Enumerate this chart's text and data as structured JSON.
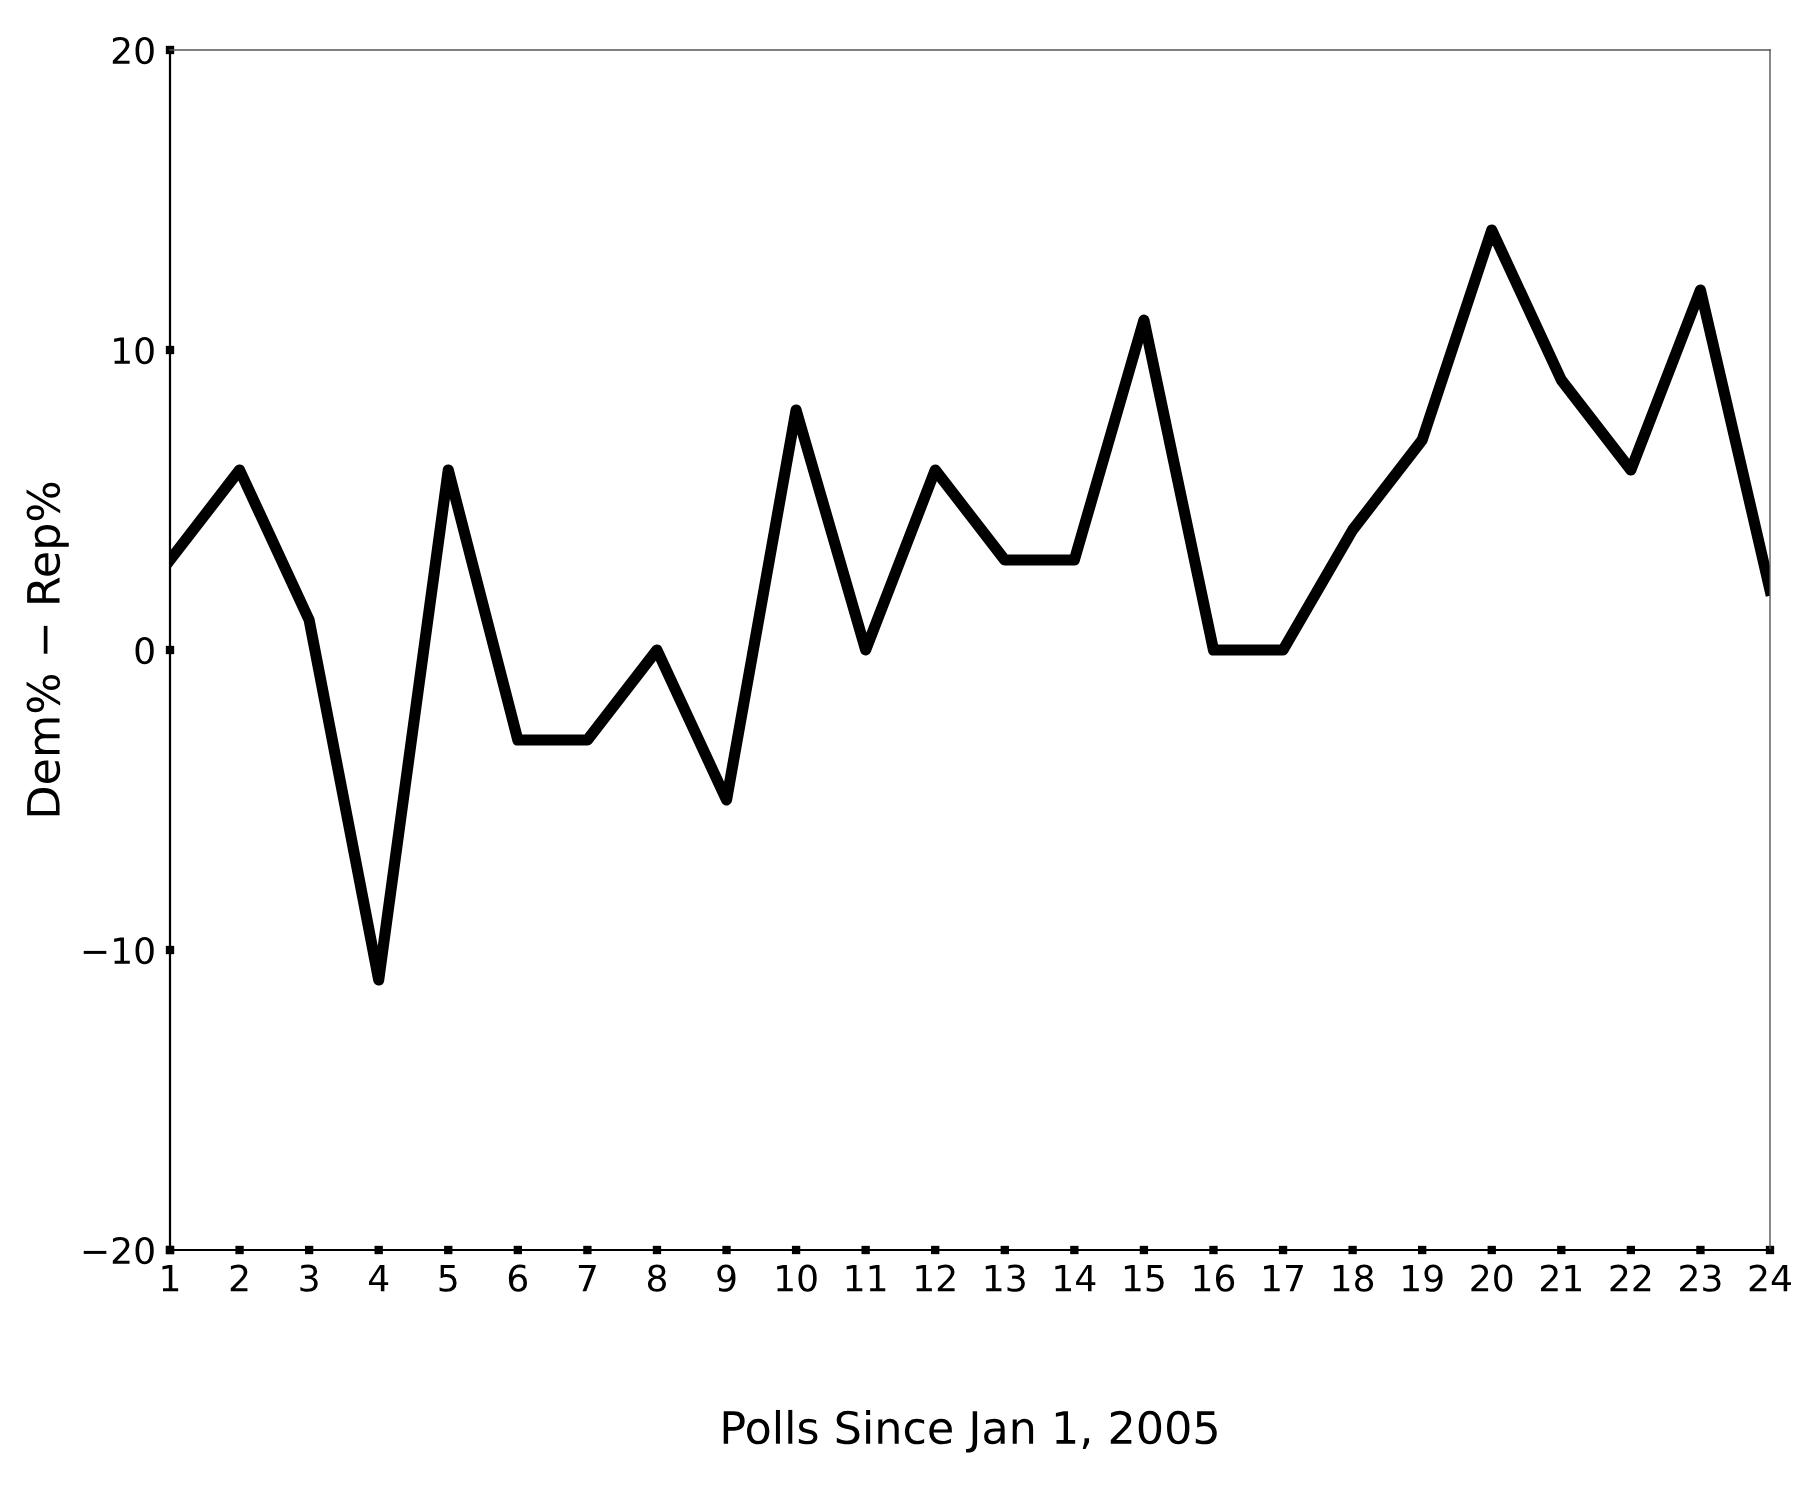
{
  "chart_data": {
    "type": "line",
    "xlabel": "Polls Since Jan 1, 2005",
    "ylabel": "Dem% − Rep%",
    "x": [
      1,
      2,
      3,
      4,
      5,
      6,
      7,
      8,
      9,
      10,
      11,
      12,
      13,
      14,
      15,
      16,
      17,
      18,
      19,
      20,
      21,
      22,
      23,
      24
    ],
    "series": [
      {
        "color": "#000000",
        "values": [
          3,
          6,
          1,
          -11,
          6,
          -3,
          -3,
          0,
          -5,
          8,
          0,
          6,
          3,
          3,
          11,
          0,
          0,
          4,
          7,
          14,
          9,
          6,
          12,
          2
        ]
      }
    ],
    "xlim": [
      1,
      24
    ],
    "xticks": [
      1,
      2,
      3,
      4,
      5,
      6,
      7,
      8,
      9,
      10,
      11,
      12,
      13,
      14,
      15,
      16,
      17,
      18,
      19,
      20,
      21,
      22,
      23,
      24
    ],
    "ylim": [
      -20,
      20
    ],
    "yticks": [
      {
        "value": -20,
        "label": "−20"
      },
      {
        "value": -10,
        "label": "−10"
      },
      0,
      10,
      20
    ],
    "grid": false,
    "legend": false,
    "marker": "none",
    "line_style": "solid"
  }
}
